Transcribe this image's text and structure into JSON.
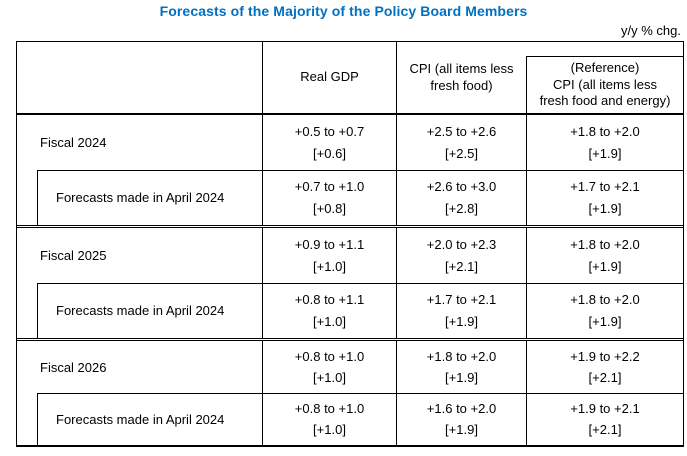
{
  "page": {
    "title": "Forecasts of the Majority of the Policy Board Members",
    "unit_note": "y/y % chg."
  },
  "colors": {
    "title_blue": "#0070C0",
    "border": "#000000",
    "text": "#000000",
    "background": "#FFFFFF"
  },
  "table": {
    "columns": {
      "label": "",
      "gdp": "Real GDP",
      "cpi": "CPI (all items less\nfresh food)",
      "reference": "(Reference)\nCPI (all items less\nfresh food and energy)"
    },
    "sections": [
      {
        "rows": [
          {
            "label": "Fiscal 2024",
            "gdp": "+0.5 to +0.7\n[+0.6]",
            "cpi": "+2.5 to +2.6\n[+2.5]",
            "reference": "+1.8 to +2.0\n[+1.9]"
          },
          {
            "label": "Forecasts made in April 2024",
            "gdp": "+0.7 to +1.0\n[+0.8]",
            "cpi": "+2.6 to +3.0\n[+2.8]",
            "reference": "+1.7 to +2.1\n[+1.9]"
          }
        ]
      },
      {
        "rows": [
          {
            "label": "Fiscal 2025",
            "gdp": "+0.9 to +1.1\n[+1.0]",
            "cpi": "+2.0 to +2.3\n[+2.1]",
            "reference": "+1.8 to +2.0\n[+1.9]"
          },
          {
            "label": "Forecasts made in April 2024",
            "gdp": "+0.8 to +1.1\n[+1.0]",
            "cpi": "+1.7 to +2.1\n[+1.9]",
            "reference": "+1.8 to +2.0\n[+1.9]"
          }
        ]
      },
      {
        "rows": [
          {
            "label": "Fiscal 2026",
            "gdp": "+0.8 to +1.0\n[+1.0]",
            "cpi": "+1.8 to +2.0\n[+1.9]",
            "reference": "+1.9 to +2.2\n[+2.1]"
          },
          {
            "label": "Forecasts made in April 2024",
            "gdp": "+0.8 to +1.0\n[+1.0]",
            "cpi": "+1.6 to +2.0\n[+1.9]",
            "reference": "+1.9 to +2.1\n[+2.1]"
          }
        ]
      }
    ]
  }
}
